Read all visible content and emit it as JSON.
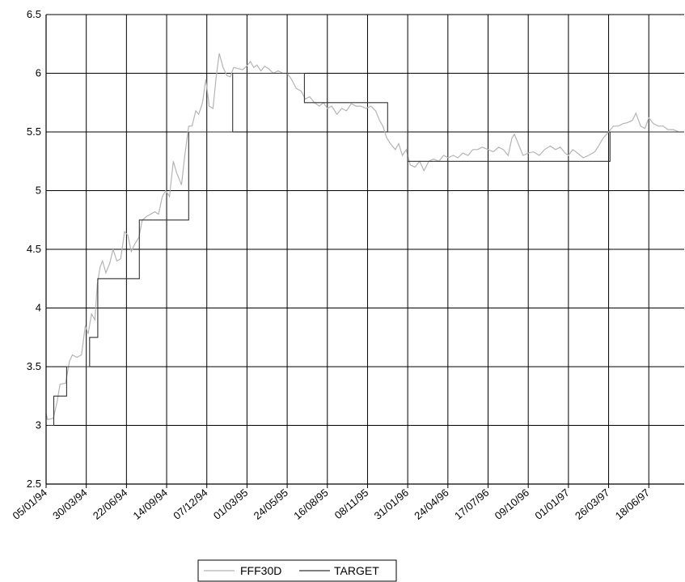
{
  "chart_data": {
    "type": "line",
    "title": "",
    "xlabel": "",
    "ylabel": "",
    "ylim": [
      2.5,
      6.5
    ],
    "y_ticks": [
      "6.5",
      "6",
      "5.5",
      "5",
      "4.5",
      "4",
      "3.5",
      "3",
      "2.5"
    ],
    "x_ticks": [
      "05/01/94",
      "30/03/94",
      "22/06/94",
      "14/09/94",
      "07/12/94",
      "01/03/95",
      "24/05/95",
      "16/08/95",
      "08/11/95",
      "31/01/96",
      "24/04/96",
      "17/07/96",
      "09/10/96",
      "01/01/97",
      "26/03/97",
      "18/06/97"
    ],
    "x_end": "31/08/97",
    "grid": true,
    "legend_position": "bottom",
    "series": [
      {
        "name": "FFF30D",
        "color": "#b4b4b4",
        "points": [
          [
            "05/01/94",
            3.1
          ],
          [
            "08/01/94",
            3.05
          ],
          [
            "20/01/94",
            3.06
          ],
          [
            "28/01/94",
            3.2
          ],
          [
            "03/02/94",
            3.35
          ],
          [
            "15/02/94",
            3.36
          ],
          [
            "23/02/94",
            3.55
          ],
          [
            "01/03/94",
            3.6
          ],
          [
            "10/03/94",
            3.58
          ],
          [
            "20/03/94",
            3.6
          ],
          [
            "28/03/94",
            3.85
          ],
          [
            "03/04/94",
            3.78
          ],
          [
            "10/04/94",
            3.95
          ],
          [
            "17/04/94",
            3.9
          ],
          [
            "22/04/94",
            4.2
          ],
          [
            "28/04/94",
            4.35
          ],
          [
            "03/05/94",
            4.4
          ],
          [
            "10/05/94",
            4.3
          ],
          [
            "18/05/94",
            4.38
          ],
          [
            "25/05/94",
            4.5
          ],
          [
            "02/06/94",
            4.4
          ],
          [
            "10/06/94",
            4.42
          ],
          [
            "18/06/94",
            4.65
          ],
          [
            "25/06/94",
            4.62
          ],
          [
            "02/07/94",
            4.48
          ],
          [
            "10/07/94",
            4.55
          ],
          [
            "18/07/94",
            4.6
          ],
          [
            "25/07/94",
            4.75
          ],
          [
            "03/08/94",
            4.78
          ],
          [
            "12/08/94",
            4.8
          ],
          [
            "20/08/94",
            4.82
          ],
          [
            "28/08/94",
            4.8
          ],
          [
            "05/09/94",
            4.95
          ],
          [
            "12/09/94",
            5.0
          ],
          [
            "20/09/94",
            4.95
          ],
          [
            "28/09/94",
            5.25
          ],
          [
            "05/10/94",
            5.15
          ],
          [
            "15/10/94",
            5.05
          ],
          [
            "22/10/94",
            5.3
          ],
          [
            "30/10/94",
            5.55
          ],
          [
            "06/11/94",
            5.55
          ],
          [
            "14/11/94",
            5.68
          ],
          [
            "20/11/94",
            5.65
          ],
          [
            "28/11/94",
            5.75
          ],
          [
            "05/12/94",
            5.95
          ],
          [
            "12/12/94",
            5.72
          ],
          [
            "20/12/94",
            5.7
          ],
          [
            "26/12/94",
            5.95
          ],
          [
            "02/01/95",
            6.17
          ],
          [
            "10/01/95",
            6.05
          ],
          [
            "18/01/95",
            5.98
          ],
          [
            "25/01/95",
            5.97
          ],
          [
            "01/02/95",
            6.05
          ],
          [
            "10/02/95",
            6.04
          ],
          [
            "20/02/95",
            6.03
          ],
          [
            "28/02/95",
            6.06
          ],
          [
            "08/03/95",
            6.1
          ],
          [
            "15/03/95",
            6.05
          ],
          [
            "22/03/95",
            6.07
          ],
          [
            "30/03/95",
            6.02
          ],
          [
            "07/04/95",
            6.06
          ],
          [
            "15/04/95",
            6.04
          ],
          [
            "25/04/95",
            6.0
          ],
          [
            "05/05/95",
            6.02
          ],
          [
            "15/05/95",
            6.0
          ],
          [
            "24/05/95",
            6.0
          ],
          [
            "02/06/95",
            5.95
          ],
          [
            "12/06/95",
            5.87
          ],
          [
            "22/06/95",
            5.85
          ],
          [
            "01/07/95",
            5.78
          ],
          [
            "10/07/95",
            5.8
          ],
          [
            "20/07/95",
            5.75
          ],
          [
            "30/07/95",
            5.72
          ],
          [
            "08/08/95",
            5.75
          ],
          [
            "16/08/95",
            5.7
          ],
          [
            "25/08/95",
            5.72
          ],
          [
            "05/09/95",
            5.65
          ],
          [
            "15/09/95",
            5.7
          ],
          [
            "25/09/95",
            5.68
          ],
          [
            "05/10/95",
            5.74
          ],
          [
            "15/10/95",
            5.72
          ],
          [
            "25/10/95",
            5.72
          ],
          [
            "05/11/95",
            5.7
          ],
          [
            "15/11/95",
            5.72
          ],
          [
            "25/11/95",
            5.68
          ],
          [
            "03/12/95",
            5.6
          ],
          [
            "10/12/95",
            5.55
          ],
          [
            "18/12/95",
            5.45
          ],
          [
            "26/12/95",
            5.4
          ],
          [
            "05/01/96",
            5.35
          ],
          [
            "12/01/96",
            5.4
          ],
          [
            "20/01/96",
            5.3
          ],
          [
            "28/01/96",
            5.35
          ],
          [
            "05/02/96",
            5.22
          ],
          [
            "15/02/96",
            5.2
          ],
          [
            "25/02/96",
            5.25
          ],
          [
            "05/03/96",
            5.17
          ],
          [
            "15/03/96",
            5.25
          ],
          [
            "25/03/96",
            5.27
          ],
          [
            "05/04/96",
            5.25
          ],
          [
            "15/04/96",
            5.3
          ],
          [
            "25/04/96",
            5.28
          ],
          [
            "05/05/96",
            5.3
          ],
          [
            "15/05/96",
            5.28
          ],
          [
            "25/05/96",
            5.32
          ],
          [
            "05/06/96",
            5.3
          ],
          [
            "15/06/96",
            5.35
          ],
          [
            "25/06/96",
            5.35
          ],
          [
            "05/07/96",
            5.37
          ],
          [
            "17/07/96",
            5.35
          ],
          [
            "28/07/96",
            5.33
          ],
          [
            "08/08/96",
            5.37
          ],
          [
            "18/08/96",
            5.35
          ],
          [
            "28/08/96",
            5.3
          ],
          [
            "05/09/96",
            5.45
          ],
          [
            "10/09/96",
            5.48
          ],
          [
            "18/09/96",
            5.4
          ],
          [
            "28/09/96",
            5.3
          ],
          [
            "09/10/96",
            5.32
          ],
          [
            "20/10/96",
            5.33
          ],
          [
            "01/11/96",
            5.3
          ],
          [
            "12/11/96",
            5.35
          ],
          [
            "24/11/96",
            5.38
          ],
          [
            "05/12/96",
            5.35
          ],
          [
            "15/12/96",
            5.37
          ],
          [
            "25/12/96",
            5.32
          ],
          [
            "01/01/97",
            5.3
          ],
          [
            "10/01/97",
            5.35
          ],
          [
            "20/01/97",
            5.32
          ],
          [
            "01/02/97",
            5.28
          ],
          [
            "12/02/97",
            5.3
          ],
          [
            "25/02/97",
            5.33
          ],
          [
            "05/03/97",
            5.38
          ],
          [
            "15/03/97",
            5.45
          ],
          [
            "26/03/97",
            5.5
          ],
          [
            "05/04/97",
            5.55
          ],
          [
            "15/04/97",
            5.55
          ],
          [
            "25/04/97",
            5.57
          ],
          [
            "05/05/97",
            5.58
          ],
          [
            "15/05/97",
            5.6
          ],
          [
            "22/05/97",
            5.66
          ],
          [
            "01/06/97",
            5.55
          ],
          [
            "10/06/97",
            5.53
          ],
          [
            "18/06/97",
            5.62
          ],
          [
            "28/06/97",
            5.57
          ],
          [
            "08/07/97",
            5.55
          ],
          [
            "18/07/97",
            5.55
          ],
          [
            "28/07/97",
            5.52
          ],
          [
            "08/08/97",
            5.52
          ],
          [
            "20/08/97",
            5.5
          ],
          [
            "31/08/97",
            5.5
          ]
        ]
      },
      {
        "name": "TARGET",
        "color": "#333333",
        "step": true,
        "points": [
          [
            "08/01/94",
            3.0
          ],
          [
            "21/01/94",
            3.25
          ],
          [
            "17/02/94",
            3.5
          ],
          [
            "06/04/94",
            3.75
          ],
          [
            "23/04/94",
            4.25
          ],
          [
            "19/07/94",
            4.75
          ],
          [
            "30/10/94",
            5.5
          ],
          [
            "30/01/95",
            6.0
          ],
          [
            "29/06/95",
            5.75
          ],
          [
            "20/12/95",
            5.5
          ],
          [
            "31/01/96",
            5.25
          ],
          [
            "29/03/97",
            5.5
          ],
          [
            "31/08/97",
            5.5
          ]
        ]
      }
    ]
  }
}
